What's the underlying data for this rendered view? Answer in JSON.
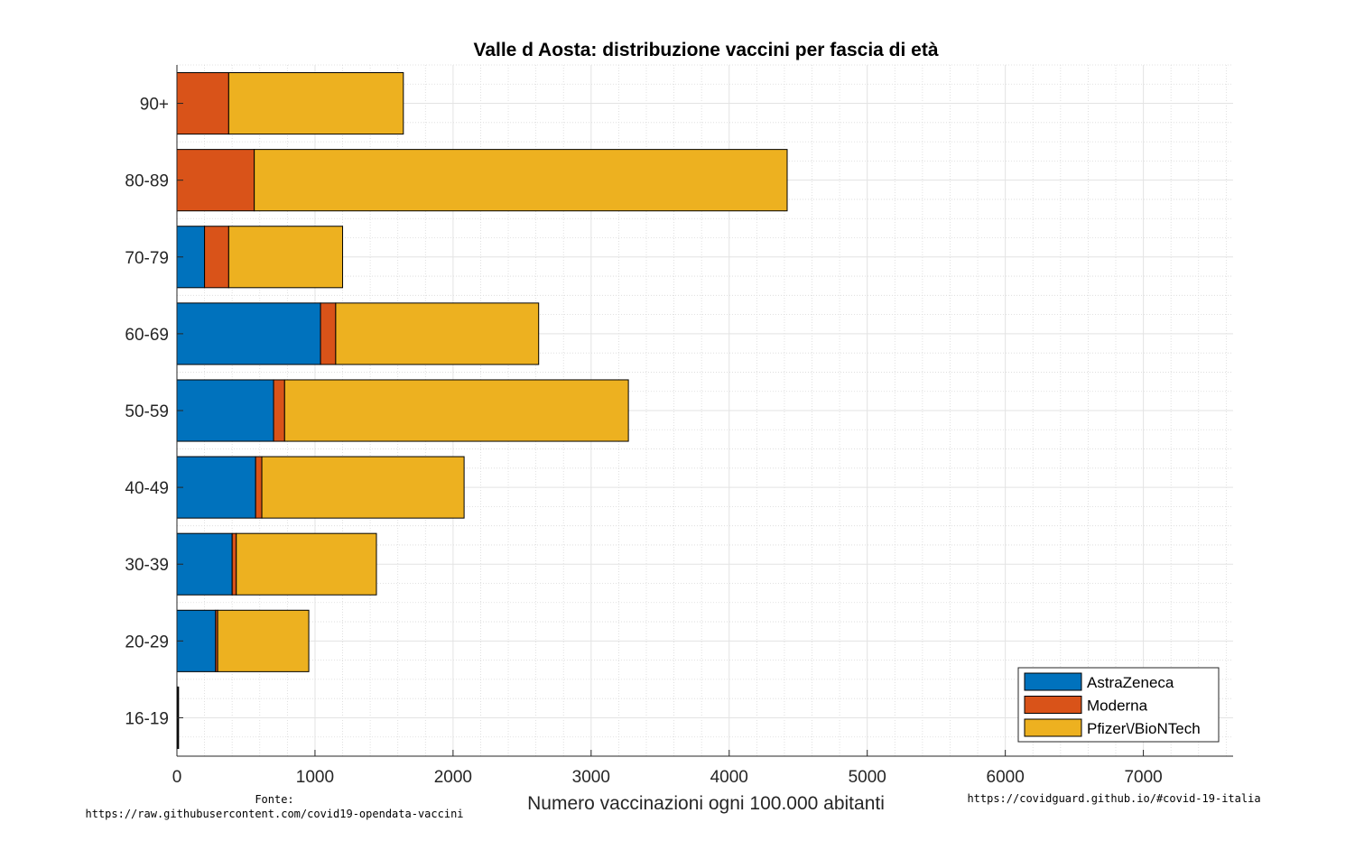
{
  "chart_data": {
    "type": "bar",
    "orientation": "horizontal",
    "stacked": true,
    "title": "Valle d Aosta: distribuzione vaccini per fascia di età",
    "xlabel": "Numero vaccinazioni ogni 100.000 abitanti",
    "ylabel": "",
    "xlim": [
      0,
      7650
    ],
    "xticks": [
      0,
      1000,
      2000,
      3000,
      4000,
      5000,
      6000,
      7000
    ],
    "categories": [
      "90+",
      "80-89",
      "70-79",
      "60-69",
      "50-59",
      "40-49",
      "30-39",
      "20-29",
      "16-19"
    ],
    "series": [
      {
        "name": "AstraZeneca",
        "color": "#0072BD",
        "values": [
          0,
          0,
          200,
          1040,
          700,
          570,
          400,
          280,
          3
        ]
      },
      {
        "name": "Moderna",
        "color": "#D95319",
        "values": [
          375,
          560,
          175,
          110,
          80,
          45,
          30,
          15,
          3
        ]
      },
      {
        "name": "Pfizer\\/BioNTech",
        "color": "#EDB120",
        "values": [
          1265,
          3860,
          825,
          1470,
          2490,
          1465,
          1015,
          660,
          6
        ]
      }
    ],
    "grid": true,
    "minor_grid": true,
    "legend_position": "bottom-right"
  },
  "footnotes": {
    "source_label": "Fonte:",
    "source_url": "https://raw.githubusercontent.com/covid19-opendata-vaccini",
    "site_url": "https://covidguard.github.io/#covid-19-italia"
  }
}
